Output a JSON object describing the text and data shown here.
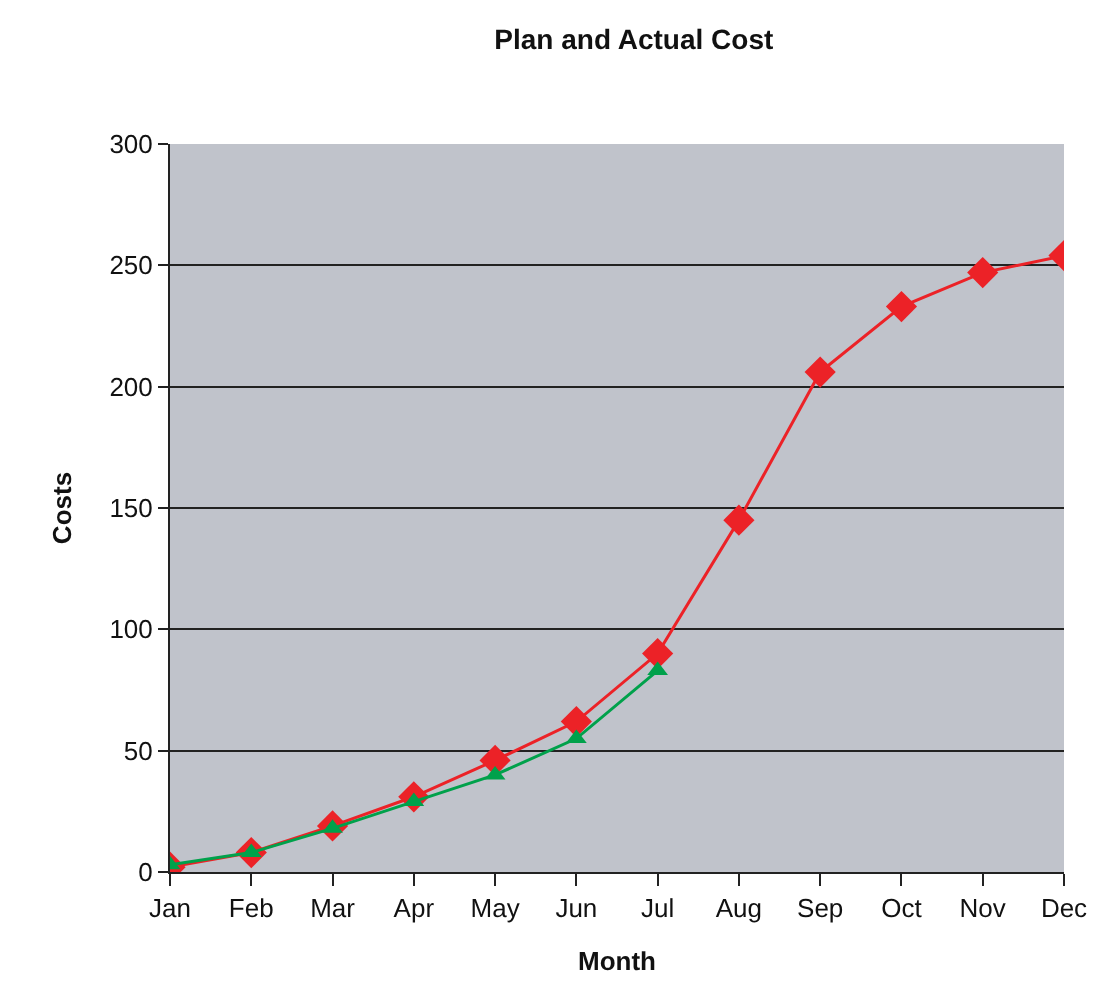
{
  "chart_data": {
    "type": "line",
    "title": "Plan and Actual Cost",
    "xlabel": "Month",
    "ylabel": "Costs",
    "categories": [
      "Jan",
      "Feb",
      "Mar",
      "Apr",
      "May",
      "Jun",
      "Jul",
      "Aug",
      "Sep",
      "Oct",
      "Nov",
      "Dec"
    ],
    "series": [
      {
        "color": "#ec2227",
        "marker": "diamond",
        "values": [
          2,
          8,
          19,
          31,
          46,
          62,
          90,
          145,
          206,
          233,
          247,
          254
        ]
      },
      {
        "color": "#00a14b",
        "marker": "triangle",
        "values": [
          3,
          8,
          18,
          29,
          40,
          55,
          83,
          null,
          null,
          null,
          null,
          null
        ]
      }
    ],
    "ylim": [
      0,
      300
    ],
    "yticks": [
      0,
      50,
      100,
      150,
      200,
      250,
      300
    ],
    "grid": "y",
    "line_style": "solid"
  }
}
